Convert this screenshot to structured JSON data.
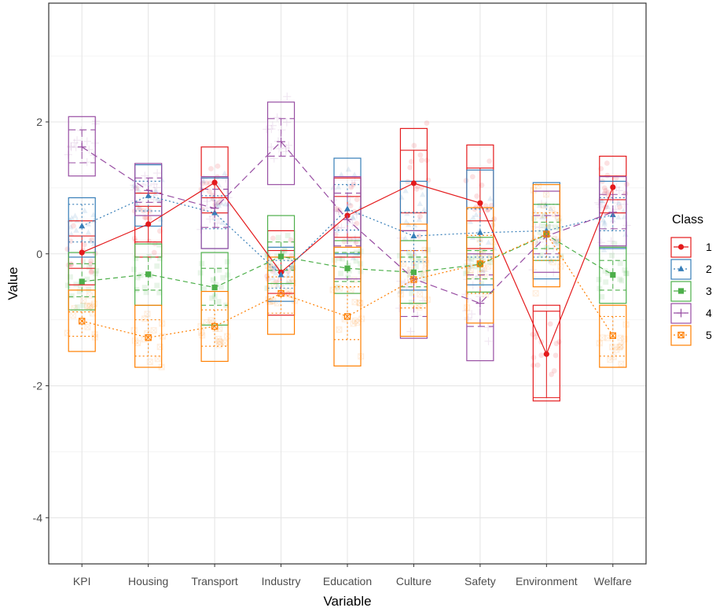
{
  "chart_data": {
    "type": "line",
    "xlabel": "Variable",
    "ylabel": "Value",
    "categories": [
      "KPI",
      "Housing",
      "Transport",
      "Industry",
      "Education",
      "Culture",
      "Safety",
      "Environment",
      "Welfare"
    ],
    "ylim": [
      -4.7,
      3.8
    ],
    "yticks": [
      -4,
      -2,
      0,
      2
    ],
    "grid": true,
    "legend": {
      "title": "Class",
      "placement": "right"
    },
    "series": [
      {
        "name": "1",
        "color": "#e41a1c",
        "marker": "circle",
        "linestyle": "solid",
        "values": [
          0.02,
          0.45,
          1.08,
          -0.28,
          0.58,
          1.07,
          0.77,
          -1.52,
          1.01
        ],
        "box_low": [
          -0.47,
          -0.05,
          0.62,
          -0.93,
          -0.05,
          0.35,
          0.08,
          -2.23,
          0.62
        ],
        "box_q1": [
          -0.22,
          0.18,
          0.85,
          -0.6,
          0.25,
          0.62,
          0.5,
          -2.18,
          0.82
        ],
        "box_q3": [
          0.27,
          0.72,
          1.17,
          0.05,
          0.87,
          1.57,
          1.3,
          -0.87,
          1.18
        ],
        "box_high": [
          0.5,
          0.92,
          1.62,
          0.35,
          1.15,
          1.9,
          1.65,
          -0.78,
          1.48
        ]
      },
      {
        "name": "2",
        "color": "#377eb8",
        "marker": "triangle",
        "linestyle": "dotted",
        "values": [
          0.42,
          0.88,
          0.62,
          -0.32,
          0.68,
          0.27,
          0.32,
          0.35,
          0.59
        ],
        "box_low": [
          -0.05,
          0.42,
          0.08,
          -0.72,
          0.0,
          -0.55,
          -0.47,
          -0.38,
          0.08
        ],
        "box_q1": [
          0.18,
          0.65,
          0.38,
          -0.52,
          0.36,
          -0.12,
          -0.05,
          -0.05,
          0.35
        ],
        "box_q3": [
          0.75,
          1.1,
          0.88,
          -0.1,
          1.05,
          0.63,
          0.68,
          0.75,
          0.85
        ],
        "box_high": [
          0.85,
          1.35,
          1.15,
          0.1,
          1.45,
          1.1,
          1.27,
          1.08,
          1.1
        ]
      },
      {
        "name": "3",
        "color": "#4daf4a",
        "marker": "square",
        "linestyle": "dashed",
        "values": [
          -0.42,
          -0.31,
          -0.51,
          -0.04,
          -0.22,
          -0.28,
          -0.16,
          0.29,
          -0.32
        ],
        "box_low": [
          -0.85,
          -0.78,
          -1.08,
          -0.45,
          -0.6,
          -0.75,
          -0.58,
          -0.1,
          -0.75
        ],
        "box_q1": [
          -0.65,
          -0.55,
          -0.78,
          -0.25,
          -0.42,
          -0.5,
          -0.38,
          0.08,
          -0.55
        ],
        "box_q3": [
          -0.15,
          -0.05,
          -0.22,
          0.18,
          0.02,
          -0.05,
          0.05,
          0.48,
          -0.1
        ],
        "box_high": [
          0.02,
          0.15,
          0.02,
          0.58,
          0.2,
          0.2,
          0.25,
          0.75,
          0.1
        ]
      },
      {
        "name": "4",
        "color": "#984ea3",
        "marker": "plus",
        "linestyle": "longdash",
        "values": [
          1.62,
          0.96,
          0.69,
          1.7,
          0.52,
          -0.38,
          -0.75,
          0.27,
          0.63
        ],
        "box_low": [
          1.18,
          0.58,
          0.08,
          1.05,
          -0.38,
          -1.28,
          -1.62,
          -0.28,
          0.12
        ],
        "box_q1": [
          1.38,
          0.78,
          0.4,
          1.48,
          0.12,
          -0.95,
          -1.1,
          0.0,
          0.38
        ],
        "box_q3": [
          1.88,
          1.15,
          0.98,
          2.05,
          0.92,
          0.05,
          -0.32,
          0.58,
          0.9
        ],
        "box_high": [
          2.08,
          1.37,
          1.17,
          2.3,
          1.17,
          0.35,
          0.0,
          0.95,
          1.17
        ]
      },
      {
        "name": "5",
        "color": "#ff7f00",
        "marker": "square-x",
        "linestyle": "dotted",
        "values": [
          -1.02,
          -1.27,
          -1.1,
          -0.6,
          -0.95,
          -0.39,
          -0.15,
          0.3,
          -1.24
        ],
        "box_low": [
          -1.48,
          -1.72,
          -1.63,
          -1.22,
          -1.7,
          -1.25,
          -1.05,
          -0.5,
          -1.72
        ],
        "box_q1": [
          -1.25,
          -1.55,
          -1.4,
          -0.9,
          -1.3,
          -0.82,
          -0.6,
          -0.1,
          -1.55
        ],
        "box_q3": [
          -0.88,
          -1.0,
          -0.85,
          -0.35,
          -0.5,
          0.05,
          0.28,
          0.62,
          -0.95
        ],
        "box_high": [
          -0.55,
          -0.78,
          -0.57,
          -0.05,
          0.1,
          0.45,
          0.7,
          1.05,
          -0.78
        ]
      }
    ]
  }
}
